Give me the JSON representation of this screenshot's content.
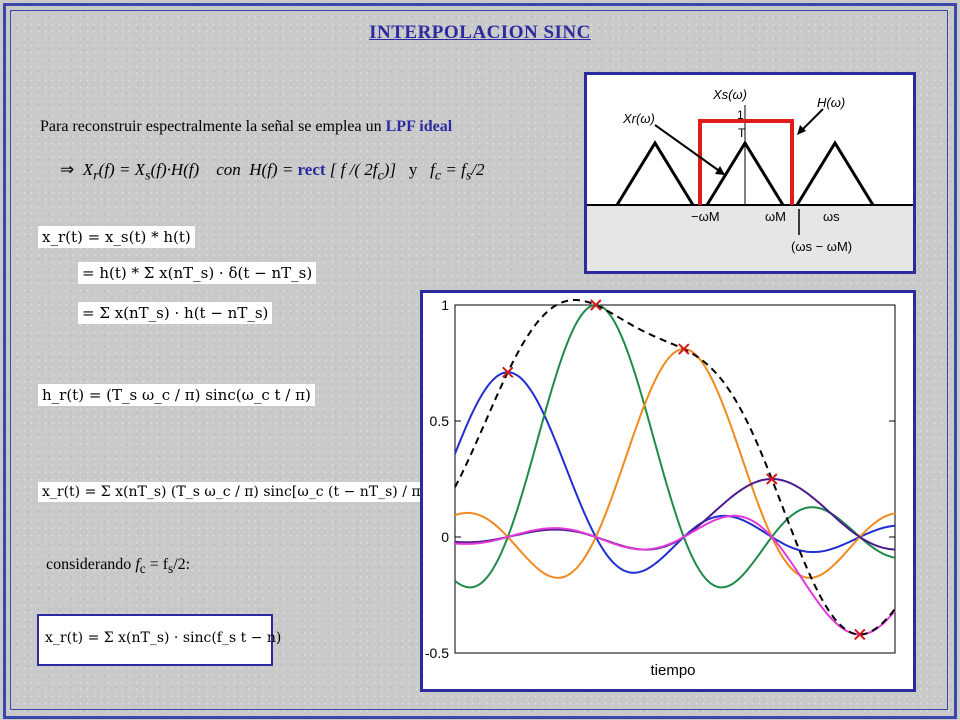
{
  "title": "INTERPOLACION   SINC",
  "intro": {
    "text": "Para reconstruir espectralmente la señal se emplea un",
    "highlight": "LPF ideal"
  },
  "eq": {
    "arrow": "⇒",
    "lhs": "X",
    "lhs_sub": "r",
    "body": "(f) = X",
    "xs_sub": "s",
    "body2": "(f)·H(f)    con  H(f) =",
    "rect": "rect",
    "rect_arg": "[ f /( 2f",
    "fc_sub": "c",
    "rect_close": ")]",
    "y": "y",
    "fc": "f",
    "fc2": " = f",
    "fs_sub": "s",
    "tail": "/2"
  },
  "formulas": {
    "conv1": "x_r(t) = x_s(t) * h(t)",
    "conv2": "= h(t) * Σ x(nT_s) · δ(t − nT_s)",
    "conv3": "= Σ x(nT_s) · h(t − nT_s)",
    "h": "h_r(t) = (T_s ω_c / π) sinc(ω_c t / π)",
    "xr": "x_r(t) = Σ x(nT_s) (T_s ω_c / π) sinc[ω_c (t − nT_s) / π]",
    "final": "x_r(t) = Σ x(nT_s) · sinc(f_s t − n)"
  },
  "considerando": {
    "pre": "considerando",
    "f": "f",
    "c": "c",
    "eq": " = f",
    "s": "s",
    "post": "/2:"
  },
  "spectrum": {
    "labels": {
      "xs": "Xs(ω)",
      "xr": "Xr(ω)",
      "h": "H(ω)",
      "one": "1",
      "T": "T",
      "minus_wm": "−ωM",
      "wm": "ωM",
      "ws": "ωs",
      "diff": "(ωs − ωM)"
    },
    "colors": {
      "filter": "#e01b1b",
      "arrow": "#000000"
    }
  },
  "chart_data": {
    "type": "line",
    "xlabel": "tiempo",
    "ylabel": "",
    "title": "",
    "ylim": [
      -0.5,
      1
    ],
    "yticks": [
      -0.5,
      0,
      0.5,
      1
    ],
    "ytick_labels": [
      "-0.5",
      "0",
      "0.5",
      "1"
    ],
    "samples": [
      {
        "x": 1,
        "y": 0.71
      },
      {
        "x": 2,
        "y": 1.0
      },
      {
        "x": 3,
        "y": 0.81
      },
      {
        "x": 4,
        "y": 0.25
      },
      {
        "x": 5,
        "y": -0.42
      }
    ],
    "series": [
      {
        "color": "#1f2fd0",
        "sample_index": 0
      },
      {
        "color": "#1f8a4a",
        "sample_index": 1
      },
      {
        "color": "#f08a1e",
        "sample_index": 2
      },
      {
        "color": "#4b1a8c",
        "sample_index": 3
      },
      {
        "color": "#e23ad8",
        "sample_index": 4
      },
      {
        "color": "#000000",
        "style": "dashed",
        "sum": true
      }
    ],
    "marker_color": "#d11a1a"
  }
}
